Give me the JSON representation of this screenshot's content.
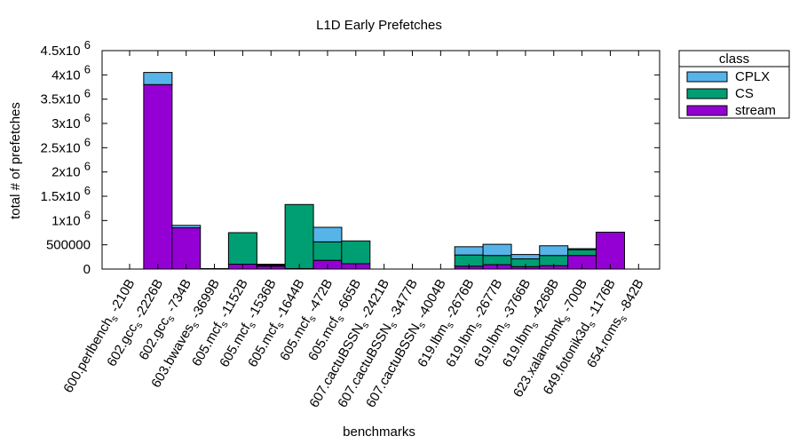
{
  "chart_data": {
    "type": "bar",
    "stacked": true,
    "title": "L1D Early Prefetches",
    "xlabel": "benchmarks",
    "ylabel": "total # of prefetches",
    "ylim": [
      0,
      4500000
    ],
    "yticks": [
      {
        "value": 0,
        "label": "0"
      },
      {
        "value": 500000,
        "label": "500000"
      },
      {
        "value": 1000000,
        "label": "1x10^6"
      },
      {
        "value": 1500000,
        "label": "1.5x10^6"
      },
      {
        "value": 2000000,
        "label": "2x10^6"
      },
      {
        "value": 2500000,
        "label": "2.5x10^6"
      },
      {
        "value": 3000000,
        "label": "3x10^6"
      },
      {
        "value": 3500000,
        "label": "3.5x10^6"
      },
      {
        "value": 4000000,
        "label": "4x10^6"
      },
      {
        "value": 4500000,
        "label": "4.5x10^6"
      }
    ],
    "categories": [
      "600.perlbench_s-210B",
      "602.gcc_s-2226B",
      "602.gcc_s-734B",
      "603.bwaves_s-3699B",
      "605.mcf_s-1152B",
      "605.mcf_s-1536B",
      "605.mcf_s-1644B",
      "605.mcf_s-472B",
      "605.mcf_s-665B",
      "607.cactuBSSN_s-2421B",
      "607.cactuBSSN_s-3477B",
      "607.cactuBSSN_s-4004B",
      "619.lbm_s-2676B",
      "619.lbm_s-2677B",
      "619.lbm_s-3766B",
      "619.lbm_s-4268B",
      "623.xalancbmk_s-700B",
      "649.fotonik3d_s-1176B",
      "654.roms_s-842B"
    ],
    "legend": {
      "title": "class",
      "position": "outside-top-right"
    },
    "series": [
      {
        "name": "stream",
        "color": "#9400d3",
        "values": [
          0,
          3800000,
          850000,
          10000,
          100000,
          60000,
          10000,
          180000,
          110000,
          0,
          0,
          0,
          60000,
          90000,
          50000,
          70000,
          280000,
          760000,
          0
        ]
      },
      {
        "name": "CS",
        "color": "#009e73",
        "values": [
          0,
          0,
          0,
          0,
          650000,
          20000,
          1320000,
          380000,
          470000,
          0,
          0,
          0,
          230000,
          190000,
          160000,
          210000,
          120000,
          0,
          0
        ]
      },
      {
        "name": "CPLX",
        "color": "#56b4e9",
        "values": [
          0,
          250000,
          50000,
          0,
          0,
          20000,
          0,
          300000,
          0,
          0,
          0,
          0,
          170000,
          230000,
          90000,
          200000,
          20000,
          0,
          0
        ]
      }
    ]
  }
}
